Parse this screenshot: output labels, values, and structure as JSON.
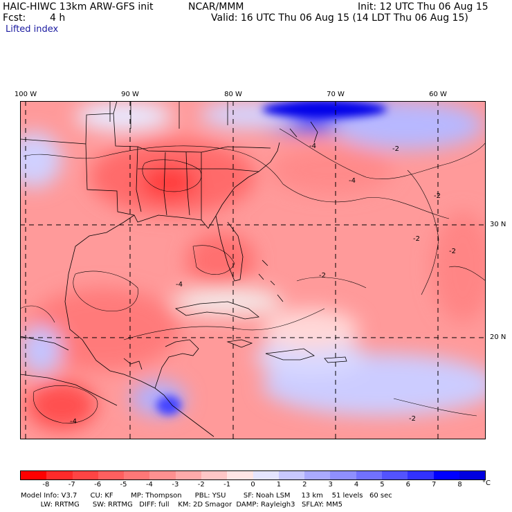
{
  "header": {
    "title": "HAIC-HIWC 13km ARW-GFS init",
    "org": "NCAR/MMM",
    "init": "Init: 12 UTC Thu 06 Aug 15",
    "fcst_label": "Fcst:",
    "fcst_value": "4 h",
    "valid": "Valid: 16 UTC Thu 06 Aug 15 (14 LDT Thu 06 Aug 15)",
    "field": "Lifted index"
  },
  "map": {
    "lon_labels": [
      "100 W",
      "90 W",
      "80 W",
      "70 W",
      "60 W"
    ],
    "lat_labels": [
      "30 N",
      "20 N"
    ],
    "contour_labels": [
      "-4",
      "-2",
      "-4",
      "-2",
      "-2",
      "-4",
      "-2",
      "-2",
      "-4",
      "-2"
    ]
  },
  "colorbar": {
    "ticks": [
      "-8",
      "-7",
      "-6",
      "-5",
      "-4",
      "-3",
      "-2",
      "-1",
      "0",
      "1",
      "2",
      "3",
      "4",
      "5",
      "6",
      "7",
      "8"
    ],
    "unit": "°C",
    "colors": [
      "#ff0000",
      "#ff2a2a",
      "#ff4444",
      "#ff5f5f",
      "#ff7777",
      "#ff9090",
      "#ffaaaa",
      "#ffc6c6",
      "#ffe4e4",
      "#e4e4ff",
      "#c8c8ff",
      "#aaaaff",
      "#8f8fff",
      "#7171ff",
      "#5353ff",
      "#3232ff",
      "#0000ff",
      "#0000e0"
    ]
  },
  "model_info": {
    "line1": "Model Info: V3.7      CU: KF        MP: Thompson      PBL: YSU        SF: Noah LSM     13 km    51 levels   60 sec",
    "line2": "         LW: RRTMG      SW: RRTMG   DIFF: full    KM: 2D Smagor  DAMP: Rayleigh3   SFLAY: MM5"
  }
}
